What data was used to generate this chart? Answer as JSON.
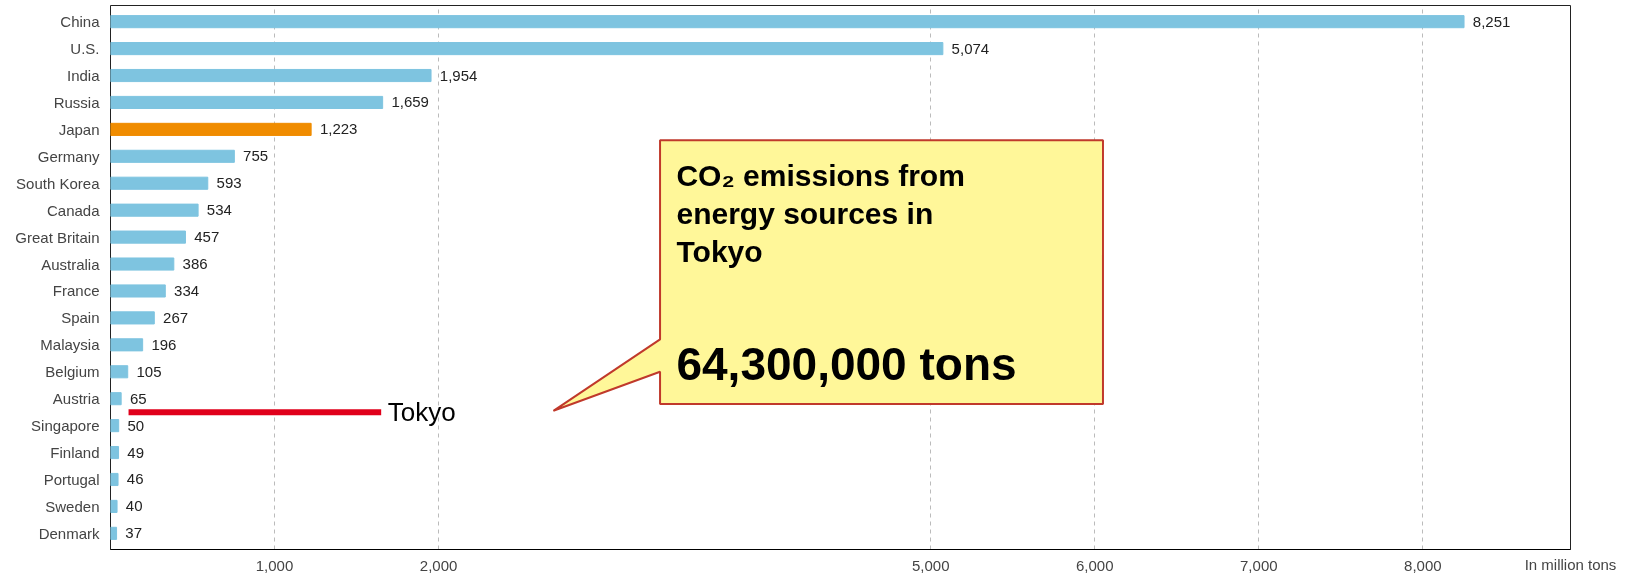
{
  "chart_data": {
    "type": "bar",
    "orientation": "horizontal",
    "xlabel": "In million tons",
    "categories": [
      "China",
      "U.S.",
      "India",
      "Russia",
      "Japan",
      "Germany",
      "South Korea",
      "Canada",
      "Great Britain",
      "Australia",
      "France",
      "Spain",
      "Malaysia",
      "Belgium",
      "Austria",
      "Singapore",
      "Finland",
      "Portugal",
      "Sweden",
      "Denmark"
    ],
    "values": [
      8251,
      5074,
      1954,
      1659,
      1223,
      755,
      593,
      534,
      457,
      386,
      334,
      267,
      196,
      105,
      65,
      50,
      49,
      46,
      40,
      37
    ],
    "colors": [
      "#7ec4e0",
      "#7ec4e0",
      "#7ec4e0",
      "#7ec4e0",
      "#f08c00",
      "#7ec4e0",
      "#7ec4e0",
      "#7ec4e0",
      "#7ec4e0",
      "#7ec4e0",
      "#7ec4e0",
      "#7ec4e0",
      "#7ec4e0",
      "#7ec4e0",
      "#7ec4e0",
      "#7ec4e0",
      "#7ec4e0",
      "#7ec4e0",
      "#7ec4e0",
      "#7ec4e0"
    ],
    "xlim": [
      0,
      8900
    ],
    "xticks": [
      {
        "value": 1000,
        "label": "1,000"
      },
      {
        "value": 2000,
        "label": "2,000"
      },
      {
        "value": 5000,
        "label": "5,000"
      },
      {
        "value": 6000,
        "label": "6,000"
      },
      {
        "value": 7000,
        "label": "7,000"
      },
      {
        "value": 8000,
        "label": "8,000"
      }
    ],
    "grid": "x",
    "value_labels": [
      "8,251",
      "5,074",
      "1,954",
      "1,659",
      "1,223",
      "755",
      "593",
      "534",
      "457",
      "386",
      "334",
      "267",
      "196",
      "105",
      "65",
      "50",
      "49",
      "46",
      "40",
      "37"
    ],
    "annotations": [
      "CO₂ emissions from energy sources in Tokyo",
      "64,300,000 tons",
      "Tokyo"
    ]
  }
}
